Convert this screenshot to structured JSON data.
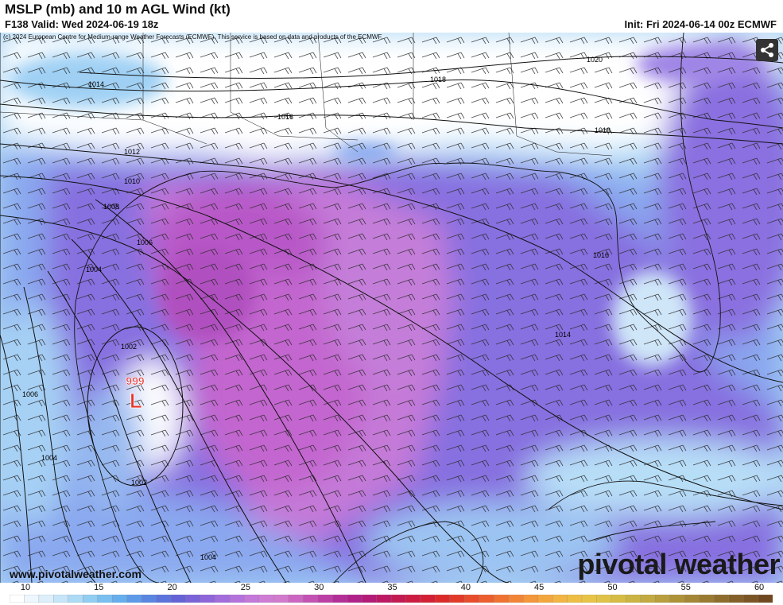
{
  "header": {
    "title": "MSLP (mb) and 10 m AGL Wind (kt)",
    "valid": "F138 Valid: Wed 2024-06-19 18z",
    "init": "Init: Fri 2024-06-14 00z ECMWF"
  },
  "map": {
    "copyright": "(c) 2024 European Centre for Medium-range Weather Forecasts (ECMWF). This service is based on data and products of the ECMWF.",
    "low_pressure": {
      "value": "999",
      "symbol": "L",
      "color": "#e8332a"
    },
    "isobar_labels": [
      "1020",
      "1018",
      "1016",
      "1014",
      "1012",
      "1010",
      "1008",
      "1006",
      "1004",
      "1002",
      "1006",
      "1004",
      "1002",
      "1004",
      "1014",
      "1016",
      "1018"
    ],
    "share_icon": "share-icon"
  },
  "footer": {
    "website": "www.pivotalweather.com",
    "brand": "pivotal weather"
  },
  "colorbar": {
    "labels": [
      "10",
      "15",
      "20",
      "25",
      "30",
      "35",
      "40",
      "45",
      "50",
      "55",
      "60"
    ],
    "min": 10,
    "max": 62
  }
}
